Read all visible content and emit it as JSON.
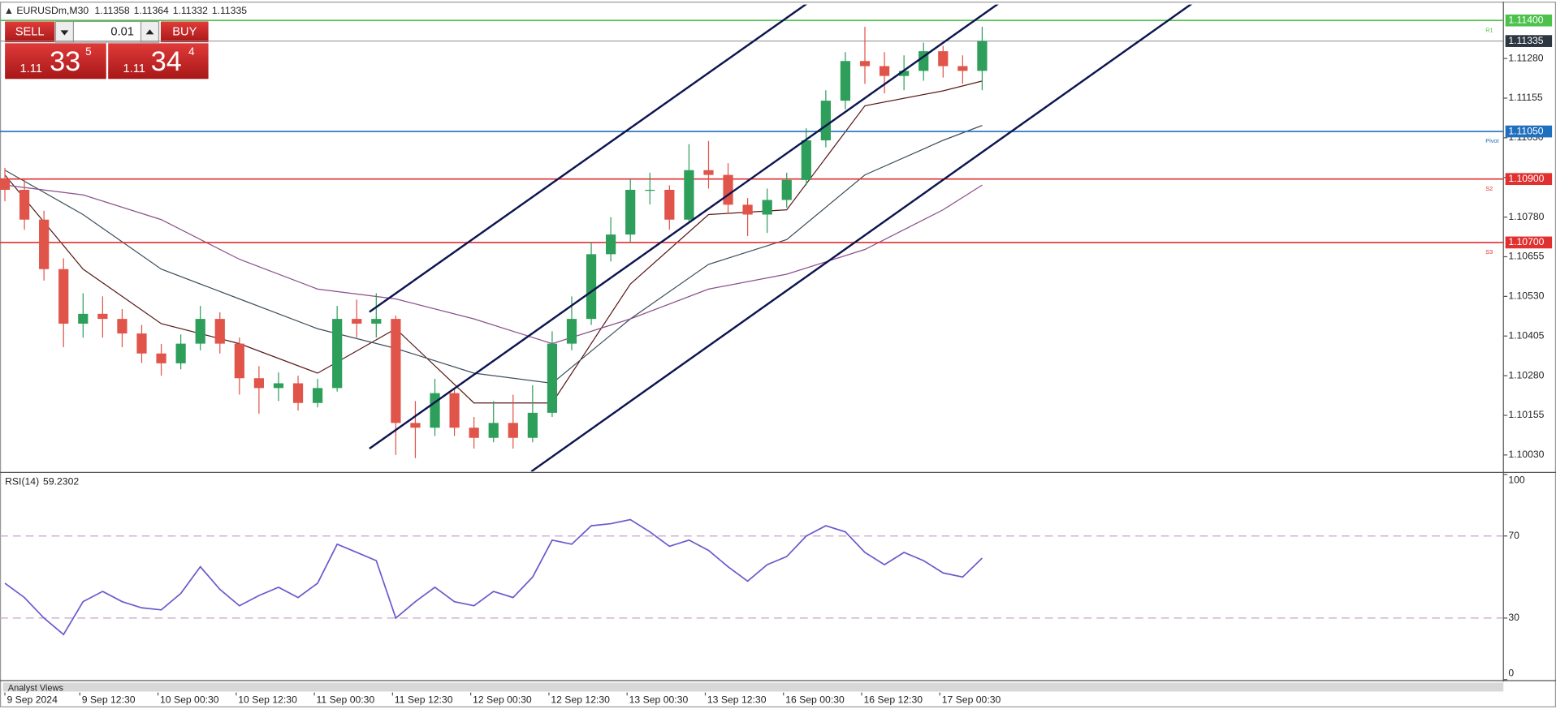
{
  "header": {
    "symbol": "EURUSDm,M30",
    "quote": [
      1.11358,
      1.11364,
      1.11332,
      1.11335
    ]
  },
  "trade_panel": {
    "sell": "SELL",
    "buy": "BUY",
    "lot": "0.01",
    "sell_price": [
      "1.11",
      "33",
      "5"
    ],
    "buy_price": [
      "1.11",
      "34",
      "4"
    ]
  },
  "analyst_views": "Analyst Views",
  "chart_data": [
    {
      "type": "candlestick",
      "x": [
        0,
        6,
        12,
        18,
        24,
        30,
        36,
        42,
        48,
        54,
        60,
        66,
        72,
        78,
        84,
        90,
        96,
        102,
        108,
        114,
        120,
        126,
        132,
        138,
        144,
        150,
        156,
        162,
        168,
        174,
        180,
        186,
        192,
        198,
        204,
        210,
        216,
        222,
        228,
        234,
        240,
        246,
        252,
        258,
        264,
        270,
        276,
        282,
        288,
        294,
        300
      ],
      "open": [
        1.109,
        1.10866,
        1.10772,
        1.10616,
        1.10444,
        1.10475,
        1.10459,
        1.10413,
        1.1035,
        1.10319,
        1.10381,
        1.10459,
        1.10381,
        1.10272,
        1.10241,
        1.10256,
        1.10194,
        1.10241,
        1.10459,
        1.10444,
        1.10459,
        1.10131,
        1.10116,
        1.10225,
        1.10116,
        1.10084,
        1.10131,
        1.10084,
        1.10163,
        1.10381,
        1.10459,
        1.10663,
        1.10725,
        1.10866,
        1.10866,
        1.10772,
        1.10928,
        1.10913,
        1.10819,
        1.10788,
        1.10834,
        1.10897,
        1.11022,
        1.11147,
        1.11272,
        1.11256,
        1.11225,
        1.11241,
        1.11303,
        1.11256,
        1.11241
      ],
      "high": [
        1.10935,
        1.109,
        1.108,
        1.1065,
        1.1054,
        1.1053,
        1.1049,
        1.1044,
        1.1038,
        1.1041,
        1.105,
        1.1048,
        1.104,
        1.1031,
        1.1029,
        1.1028,
        1.1027,
        1.105,
        1.1052,
        1.1054,
        1.1047,
        1.102,
        1.1027,
        1.1024,
        1.1015,
        1.102,
        1.1022,
        1.1025,
        1.1042,
        1.1053,
        1.107,
        1.1078,
        1.109,
        1.1092,
        1.1088,
        1.1101,
        1.1102,
        1.1095,
        1.1084,
        1.1087,
        1.1092,
        1.1106,
        1.1118,
        1.113,
        1.1138,
        1.113,
        1.1129,
        1.1133,
        1.1132,
        1.1129,
        1.1138
      ],
      "low": [
        1.1083,
        1.1074,
        1.1058,
        1.1037,
        1.104,
        1.104,
        1.1037,
        1.1032,
        1.1028,
        1.103,
        1.1036,
        1.1035,
        1.1022,
        1.1016,
        1.102,
        1.1017,
        1.1018,
        1.1023,
        1.104,
        1.104,
        1.1003,
        1.1002,
        1.1009,
        1.1009,
        1.1005,
        1.1007,
        1.1005,
        1.1007,
        1.1015,
        1.1036,
        1.1044,
        1.1064,
        1.107,
        1.1082,
        1.1074,
        1.1076,
        1.1087,
        1.1079,
        1.1072,
        1.1073,
        1.1081,
        1.1088,
        1.11,
        1.1112,
        1.112,
        1.1117,
        1.1118,
        1.1121,
        1.1122,
        1.112,
        1.1118
      ],
      "close": [
        1.10866,
        1.10772,
        1.10616,
        1.10444,
        1.10475,
        1.10459,
        1.10413,
        1.1035,
        1.10319,
        1.10381,
        1.10459,
        1.10381,
        1.10272,
        1.10241,
        1.10256,
        1.10194,
        1.10241,
        1.10459,
        1.10444,
        1.10459,
        1.10131,
        1.10116,
        1.10225,
        1.10116,
        1.10084,
        1.10131,
        1.10084,
        1.10163,
        1.10381,
        1.10459,
        1.10663,
        1.10725,
        1.10866,
        1.10866,
        1.10772,
        1.10928,
        1.10913,
        1.10819,
        1.10788,
        1.10834,
        1.10897,
        1.11022,
        1.11147,
        1.11272,
        1.11256,
        1.11225,
        1.11241,
        1.11303,
        1.11256,
        1.11241,
        1.11335
      ],
      "up_color": "#2e9e5b",
      "down_color": "#e0544a",
      "xlim": [
        -1.5,
        460
      ],
      "xticks": [
        {
          "value": 0,
          "label": "9 Sep 2024"
        },
        {
          "value": 23,
          "label": "9 Sep 12:30"
        },
        {
          "value": 47,
          "label": "10 Sep 00:30"
        },
        {
          "value": 71,
          "label": "10 Sep 12:30"
        },
        {
          "value": 95,
          "label": "11 Sep 00:30"
        },
        {
          "value": 119,
          "label": "11 Sep 12:30"
        },
        {
          "value": 143,
          "label": "12 Sep 00:30"
        },
        {
          "value": 167,
          "label": "12 Sep 12:30"
        },
        {
          "value": 191,
          "label": "13 Sep 00:30"
        },
        {
          "value": 215,
          "label": "13 Sep 12:30"
        },
        {
          "value": 239,
          "label": "16 Sep 00:30"
        },
        {
          "value": 263,
          "label": "16 Sep 12:30"
        },
        {
          "value": 287,
          "label": "17 Sep 00:30"
        }
      ],
      "ylim": [
        1.09978,
        1.1145
      ],
      "yticks": [
        {
          "value": 1.1003,
          "label": "1.10030"
        },
        1.10155,
        {
          "value": 1.1028,
          "label": "1.10280"
        },
        1.10405,
        {
          "value": 1.1053,
          "label": "1.10530"
        },
        1.10655,
        {
          "value": 1.1078,
          "label": "1.10780"
        },
        1.10905,
        {
          "value": 1.1103,
          "label": "1.11030"
        },
        1.11155,
        {
          "value": 1.1128,
          "label": "1.11280"
        }
      ],
      "ma_series": [
        {
          "color": "#5a1a1a",
          "x": [
            0,
            24,
            48,
            72,
            96,
            120,
            144,
            168,
            192,
            216,
            240,
            264,
            288,
            300
          ],
          "values": [
            1.10913,
            1.10616,
            1.10444,
            1.10381,
            1.10288,
            1.10428,
            1.10194,
            1.10194,
            1.10569,
            1.10788,
            1.10803,
            1.11131,
            1.11178,
            1.11209
          ]
        },
        {
          "color": "#3d4f5c",
          "x": [
            0,
            24,
            48,
            72,
            96,
            120,
            144,
            168,
            192,
            216,
            240,
            264,
            288,
            300
          ],
          "values": [
            1.10928,
            1.10788,
            1.10616,
            1.10522,
            1.10428,
            1.10366,
            1.10288,
            1.10256,
            1.10459,
            1.10631,
            1.10709,
            1.10913,
            1.11022,
            1.11069
          ]
        },
        {
          "color": "#8a4f8a",
          "x": [
            0,
            24,
            48,
            72,
            96,
            120,
            144,
            168,
            192,
            216,
            240,
            264,
            288,
            300
          ],
          "values": [
            1.10881,
            1.1085,
            1.10772,
            1.10647,
            1.10553,
            1.10522,
            1.10459,
            1.10381,
            1.10459,
            1.10553,
            1.106,
            1.10678,
            1.10803,
            1.10881
          ]
        }
      ],
      "trendlines": [
        {
          "color": "#0d1550",
          "x": [
            111.9,
            247
          ],
          "values": [
            1.10481,
            1.11459
          ]
        },
        {
          "color": "#0d1550",
          "x": [
            111.9,
            305.8
          ],
          "values": [
            1.1005,
            1.11459
          ]
        },
        {
          "color": "#0d1550",
          "x": [
            161.6,
            365.2
          ],
          "values": [
            1.09978,
            1.11459
          ]
        }
      ],
      "levels": [
        {
          "value": 1.114,
          "label": "1.11400",
          "color": "#4cc24c",
          "name": "R1"
        },
        {
          "value": 1.1105,
          "label": "1.11050",
          "color": "#1f6fbf",
          "name": "Pivot"
        },
        {
          "value": 1.109,
          "label": "1.10900",
          "color": "#e03030",
          "name": "S2"
        },
        {
          "value": 1.107,
          "label": "1.10700",
          "color": "#e03030",
          "name": "S3"
        }
      ],
      "current_price": {
        "value": 1.11335,
        "color": "#8c8c8c",
        "box_color": "#2b3640"
      }
    },
    {
      "type": "line",
      "title": "RSI(14)",
      "x": [
        0,
        6,
        12,
        18,
        24,
        30,
        36,
        42,
        48,
        54,
        60,
        66,
        72,
        78,
        84,
        90,
        96,
        102,
        108,
        114,
        120,
        126,
        132,
        138,
        144,
        150,
        156,
        162,
        168,
        174,
        180,
        186,
        192,
        198,
        204,
        210,
        216,
        222,
        228,
        234,
        240,
        246,
        252,
        258,
        264,
        270,
        276,
        282,
        288,
        294,
        300
      ],
      "series": [
        {
          "color": "#6a5acd",
          "values": [
            47,
            40,
            30,
            22,
            38,
            43,
            38,
            35,
            34,
            42,
            55,
            44,
            36,
            41,
            45,
            40,
            47,
            66,
            62,
            58,
            30,
            38,
            45,
            38,
            36,
            43,
            40,
            50,
            68,
            66,
            75,
            76,
            78,
            72,
            65,
            68,
            63,
            55,
            48,
            56,
            60,
            70,
            75,
            72,
            62,
            56,
            62,
            58,
            52,
            50,
            59.2302
          ]
        }
      ],
      "xlim": [
        -1.5,
        460
      ],
      "ylim": [
        0,
        100
      ],
      "yticks": [
        0,
        30,
        70,
        100
      ],
      "levels": [
        30,
        70
      ],
      "level_color": "#c8a0c8"
    }
  ]
}
